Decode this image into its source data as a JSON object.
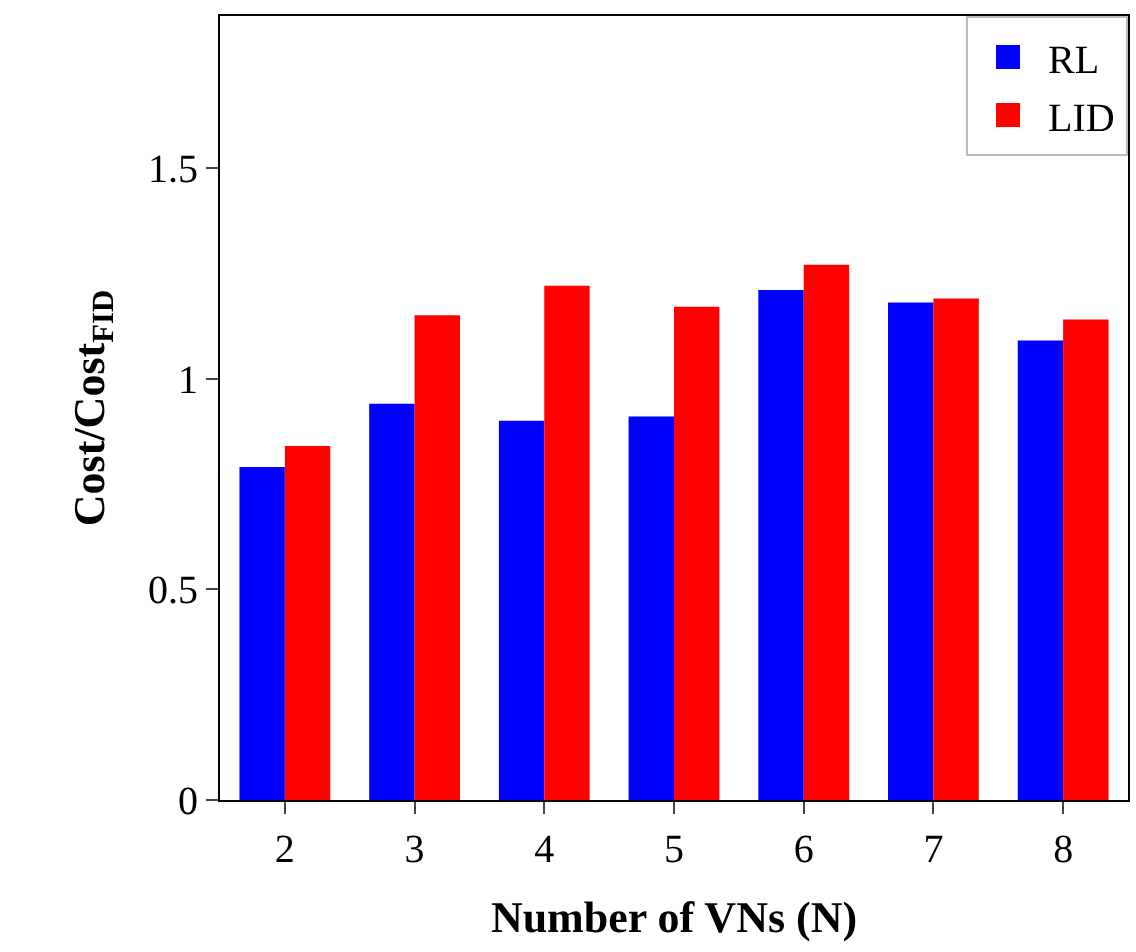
{
  "chart_data": {
    "type": "bar",
    "xlabel": "Number of VNs (N)",
    "ylabel": "Cost/Cost$_{FID}$",
    "categories": [
      "2",
      "3",
      "4",
      "5",
      "6",
      "7",
      "8"
    ],
    "series": [
      {
        "name": "RL",
        "color": "#0000ff",
        "values": [
          0.79,
          0.94,
          0.9,
          0.91,
          1.21,
          1.18,
          1.09
        ]
      },
      {
        "name": "LID",
        "color": "#ff0000",
        "values": [
          0.84,
          1.15,
          1.22,
          1.17,
          1.27,
          1.19,
          1.14
        ]
      }
    ],
    "ylim": [
      0,
      1.86
    ],
    "yticks": [
      0,
      0.5,
      1,
      1.5
    ],
    "legend": "top right"
  }
}
